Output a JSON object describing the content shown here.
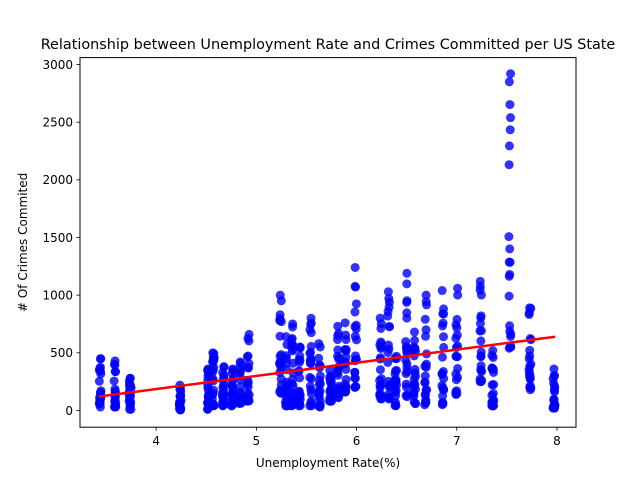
{
  "chart_data": {
    "type": "scatter",
    "title": "Relationship between Unemployment Rate and Crimes Committed per US State",
    "xlabel": "Unemployment Rate(%)",
    "ylabel": "# Of Crimes Commited",
    "xlim": [
      3.24,
      8.19
    ],
    "ylim": [
      -145,
      3060
    ],
    "xticks": [
      4,
      5,
      6,
      7,
      8
    ],
    "yticks": [
      0,
      500,
      1000,
      1500,
      2000,
      2500,
      3000
    ],
    "grid": false,
    "legend": "none",
    "point_color": "#0000ff",
    "line_color": "#ff0000",
    "regression_line": {
      "x": [
        3.44,
        7.97
      ],
      "y": [
        122,
        638
      ]
    },
    "series": [
      {
        "columns": [
          {
            "x": 3.44,
            "ymin": 30,
            "ymax": 450
          },
          {
            "x": 3.59,
            "ymin": 30,
            "ymax": 430
          },
          {
            "x": 3.74,
            "ymin": 10,
            "ymax": 280
          },
          {
            "x": 4.24,
            "ymin": 5,
            "ymax": 220
          },
          {
            "x": 4.52,
            "ymin": 10,
            "ymax": 360
          },
          {
            "x": 4.57,
            "ymin": 40,
            "ymax": 500
          },
          {
            "x": 4.67,
            "ymin": 40,
            "ymax": 380
          },
          {
            "x": 4.76,
            "ymin": 40,
            "ymax": 360
          },
          {
            "x": 4.84,
            "ymin": 60,
            "ymax": 420
          },
          {
            "x": 4.92,
            "ymin": 80,
            "ymax": 660
          },
          {
            "x": 5.24,
            "ymin": 150,
            "ymax": 1000
          },
          {
            "x": 5.3,
            "ymin": 40,
            "ymax": 640
          },
          {
            "x": 5.36,
            "ymin": 40,
            "ymax": 750
          },
          {
            "x": 5.43,
            "ymin": 40,
            "ymax": 550
          },
          {
            "x": 5.54,
            "ymin": 40,
            "ymax": 800
          },
          {
            "x": 5.63,
            "ymin": 30,
            "ymax": 580
          },
          {
            "x": 5.74,
            "ymin": 80,
            "ymax": 350
          },
          {
            "x": 5.82,
            "ymin": 110,
            "ymax": 730
          },
          {
            "x": 5.89,
            "ymin": 160,
            "ymax": 760
          },
          {
            "x": 5.99,
            "ymin": 200,
            "ymax": 1240
          },
          {
            "x": 6.24,
            "ymin": 100,
            "ymax": 800
          },
          {
            "x": 6.32,
            "ymin": 100,
            "ymax": 1030
          },
          {
            "x": 6.39,
            "ymin": 40,
            "ymax": 470
          },
          {
            "x": 6.5,
            "ymin": 120,
            "ymax": 1190
          },
          {
            "x": 6.58,
            "ymin": 60,
            "ymax": 680
          },
          {
            "x": 6.69,
            "ymin": 50,
            "ymax": 1000
          },
          {
            "x": 6.86,
            "ymin": 50,
            "ymax": 1040
          },
          {
            "x": 7.0,
            "ymin": 140,
            "ymax": 1060
          },
          {
            "x": 7.24,
            "ymin": 250,
            "ymax": 1120
          },
          {
            "x": 7.36,
            "ymin": 40,
            "ymax": 520
          },
          {
            "x": 7.53,
            "ymin": 540,
            "ymax": 2920
          },
          {
            "x": 7.73,
            "ymin": 180,
            "ymax": 890
          },
          {
            "x": 7.97,
            "ymin": 20,
            "ymax": 360
          }
        ]
      }
    ]
  }
}
